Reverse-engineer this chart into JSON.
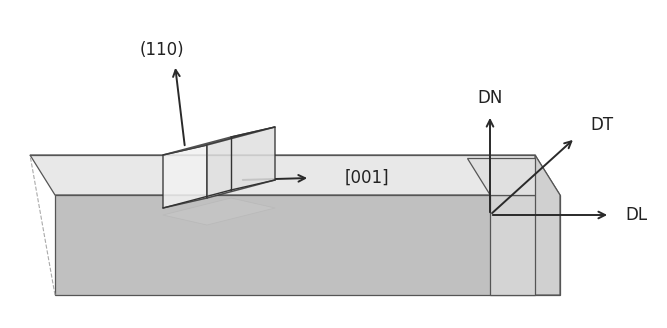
{
  "bg_color": "#ffffff",
  "slab_top_color": "#e8e8e8",
  "slab_front_color": "#c0c0c0",
  "slab_right_color": "#d0d0d0",
  "axes_panel_color": "#d4d4d4",
  "axes_panel_top_color": "#e0e0e0",
  "arrow_color": "#2a2a2a",
  "edge_color": "#555555",
  "dashed_color": "#aaaaaa",
  "shadow_color": "#c8c8c8",
  "label_110": "(110)",
  "label_001": "[001]",
  "label_DN": "DN",
  "label_DT": "DT",
  "label_DL": "DL",
  "label_fontsize": 12,
  "crystal_edge_color": "#333333",
  "crystal_face_color": "#f0f0f0"
}
